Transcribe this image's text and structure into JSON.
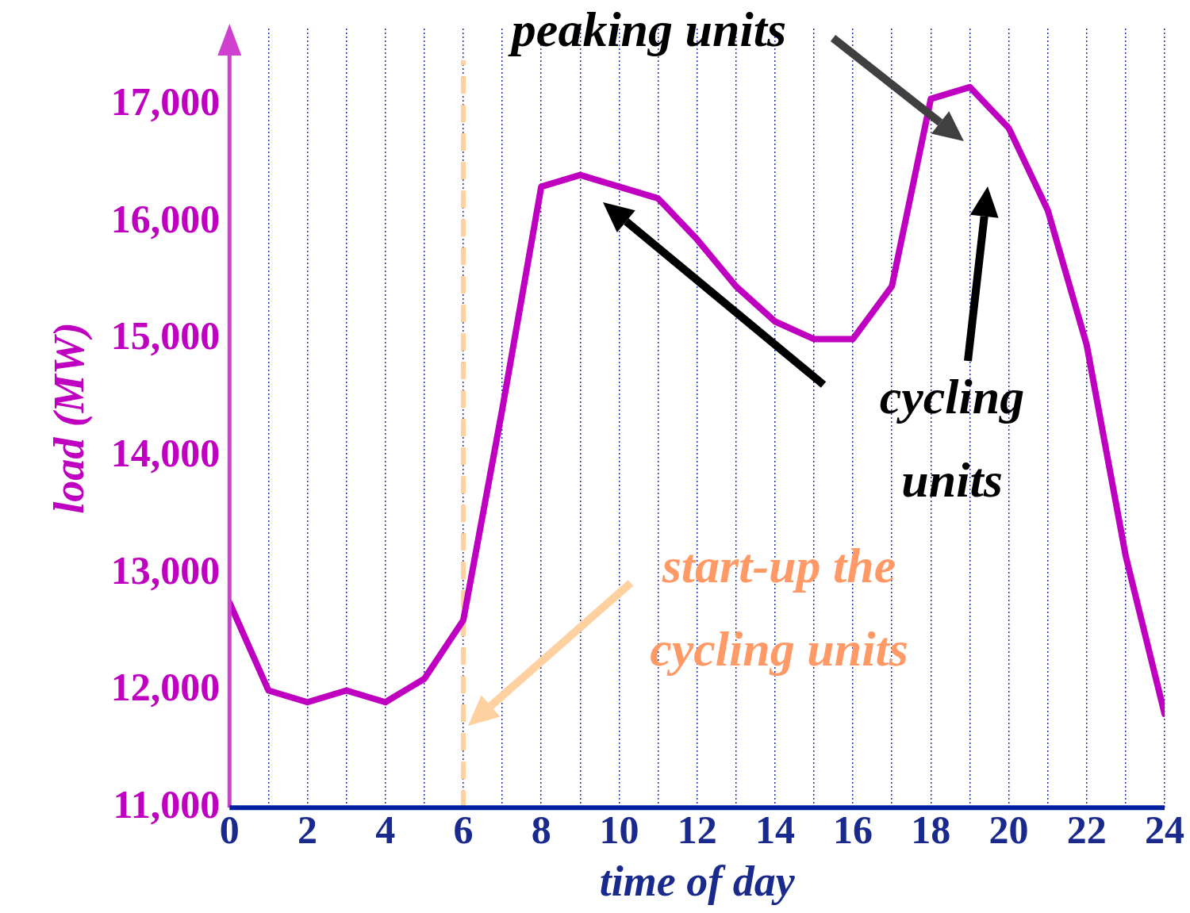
{
  "chart_data": {
    "type": "line",
    "xlabel": "time of day",
    "ylabel": "load (MW)",
    "x": [
      0,
      1,
      2,
      3,
      4,
      5,
      6,
      7,
      8,
      9,
      10,
      11,
      12,
      13,
      14,
      15,
      16,
      17,
      18,
      19,
      20,
      21,
      22,
      23,
      24
    ],
    "series": [
      {
        "color": "#c000c0",
        "values": [
          12750,
          12000,
          11900,
          12000,
          11900,
          12100,
          12600,
          14400,
          16300,
          16400,
          16300,
          16200,
          15850,
          15450,
          15150,
          15000,
          15000,
          15450,
          17050,
          17150,
          16800,
          16100,
          14950,
          13150,
          11800
        ]
      }
    ],
    "xlim": [
      0,
      24
    ],
    "xticks": [
      0,
      {
        "value": 1,
        "label": null
      },
      2,
      {
        "value": 3,
        "label": null
      },
      4,
      {
        "value": 5,
        "label": null
      },
      6,
      {
        "value": 7,
        "label": null
      },
      8,
      {
        "value": 9,
        "label": null
      },
      10,
      {
        "value": 11,
        "label": null
      },
      12,
      {
        "value": 13,
        "label": null
      },
      14,
      {
        "value": 15,
        "label": null
      },
      16,
      {
        "value": 17,
        "label": null
      },
      18,
      {
        "value": 19,
        "label": null
      },
      20,
      {
        "value": 21,
        "label": null
      },
      22,
      {
        "value": 23,
        "label": null
      },
      24
    ],
    "ylim": [
      11000,
      17650
    ],
    "yticks": [
      {
        "value": 11000,
        "label": "11,000"
      },
      {
        "value": 12000,
        "label": "12,000"
      },
      {
        "value": 13000,
        "label": "13,000"
      },
      {
        "value": 14000,
        "label": "14,000"
      },
      {
        "value": 15000,
        "label": "15,000"
      },
      {
        "value": 16000,
        "label": "16,000"
      },
      {
        "value": 17000,
        "label": "17,000"
      }
    ],
    "grid": "x",
    "legend": false,
    "ref_lines": [
      {
        "axis": "x",
        "value": 6,
        "color": "#ffd0a0",
        "line_style": "dashed"
      }
    ],
    "annotations": [
      "peaking units",
      "cycling units",
      "start-up the cycling units"
    ]
  }
}
